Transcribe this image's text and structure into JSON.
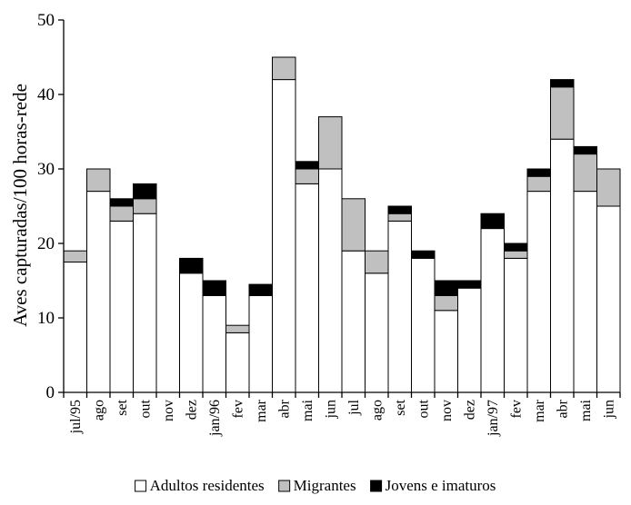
{
  "chart_data": {
    "type": "bar",
    "stacked": true,
    "ylabel": "Aves capturadas/100 horas-rede",
    "ylim": [
      0,
      50
    ],
    "yticks": [
      0,
      10,
      20,
      30,
      40,
      50
    ],
    "grid": false,
    "legend_position": "bottom",
    "categories": [
      "jul/95",
      "ago",
      "set",
      "out",
      "nov",
      "dez",
      "jan/96",
      "fev",
      "mar",
      "abr",
      "mai",
      "jun",
      "jul",
      "ago",
      "set",
      "out",
      "nov",
      "dez",
      "jan/97",
      "fev",
      "mar",
      "abr",
      "mai",
      "jun"
    ],
    "series": [
      {
        "name": "Adultos residentes",
        "color": "#ffffff",
        "values": [
          17.5,
          27,
          23,
          24,
          0,
          16,
          13,
          8,
          13,
          42,
          28,
          30,
          19,
          16,
          23,
          18,
          11,
          14,
          22,
          18,
          27,
          34,
          27,
          25
        ]
      },
      {
        "name": "Migrantes",
        "color": "#c0c0c0",
        "values": [
          1.5,
          3,
          2,
          2,
          0,
          0,
          0,
          1,
          0,
          3,
          2,
          7,
          7,
          3,
          1,
          0,
          2,
          0,
          0,
          1,
          2,
          7,
          5,
          5
        ]
      },
      {
        "name": "Jovens e imaturos",
        "color": "#000000",
        "values": [
          0,
          0,
          1,
          2,
          0,
          2,
          2,
          0,
          1.5,
          0,
          1,
          0,
          0,
          0,
          1,
          1,
          2,
          1,
          2,
          1,
          1,
          1,
          1,
          0
        ]
      }
    ]
  }
}
